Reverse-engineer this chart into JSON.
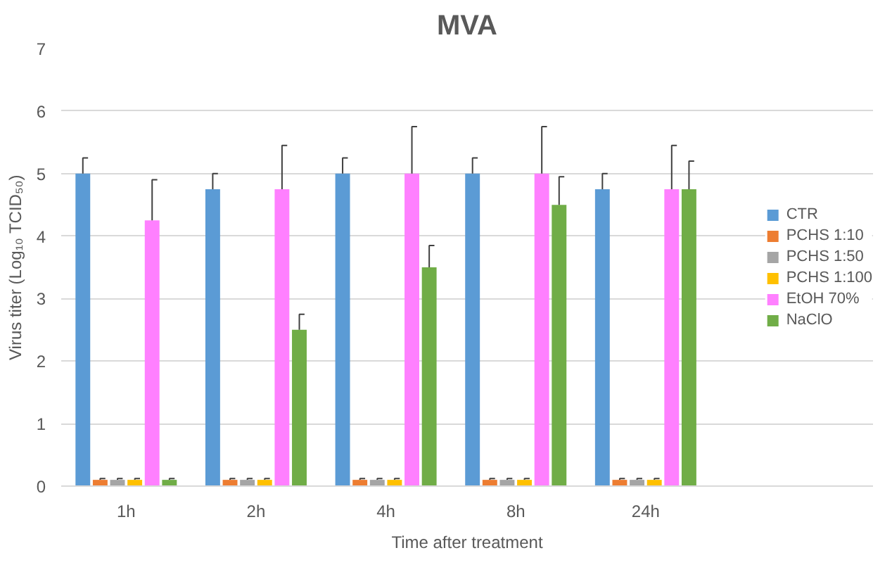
{
  "chart_data": {
    "type": "bar",
    "title": "MVA",
    "xlabel": "Time after treatment",
    "ylabel": "Virus titer (Log₁₀ TCID₅₀)",
    "categories": [
      "1h",
      "2h",
      "4h",
      "8h",
      "24h"
    ],
    "ylim": [
      0,
      7
    ],
    "yticks": [
      0,
      1,
      2,
      3,
      4,
      5,
      6,
      7
    ],
    "grid": "y",
    "legend": "right",
    "series": [
      {
        "name": "CTR",
        "color": "#5b9bd5",
        "values": [
          5,
          4.75,
          5,
          5,
          4.75
        ],
        "errors": [
          [
            5,
            5.25
          ],
          [
            4.75,
            5
          ],
          [
            5,
            5.25
          ],
          [
            5,
            5.25
          ],
          [
            4.75,
            5
          ]
        ]
      },
      {
        "name": "PCHS 1:10",
        "color": "#ed7d31",
        "values": [
          0.1,
          0.1,
          0.1,
          0.1,
          0.1
        ],
        "errors": [
          [
            0.1,
            0.12
          ],
          [
            0.1,
            0.12
          ],
          [
            0.1,
            0.12
          ],
          [
            0.1,
            0.12
          ],
          [
            0.1,
            0.12
          ]
        ]
      },
      {
        "name": "PCHS 1:50",
        "color": "#a5a5a5",
        "values": [
          0.1,
          0.1,
          0.1,
          0.1,
          0.1
        ],
        "errors": [
          [
            0.1,
            0.12
          ],
          [
            0.1,
            0.12
          ],
          [
            0.1,
            0.12
          ],
          [
            0.1,
            0.12
          ],
          [
            0.1,
            0.12
          ]
        ]
      },
      {
        "name": "PCHS 1:100",
        "color": "#ffc000",
        "values": [
          0.1,
          0.1,
          0.1,
          0.1,
          0.1
        ],
        "errors": [
          [
            0.1,
            0.12
          ],
          [
            0.1,
            0.12
          ],
          [
            0.1,
            0.12
          ],
          [
            0.1,
            0.12
          ],
          [
            0.1,
            0.12
          ]
        ]
      },
      {
        "name": "EtOH 70%",
        "color": "#ff80ff",
        "values": [
          4.25,
          4.75,
          5,
          5,
          4.75
        ],
        "errors": [
          [
            4.25,
            4.9
          ],
          [
            4.75,
            5.45
          ],
          [
            5,
            5.75
          ],
          [
            5,
            5.75
          ],
          [
            4.75,
            5.45
          ]
        ]
      },
      {
        "name": "NaClO",
        "color": "#70ad47",
        "values": [
          0.1,
          2.5,
          3.5,
          4.5,
          4.75
        ],
        "errors": [
          [
            0.1,
            0.12
          ],
          [
            2.5,
            2.75
          ],
          [
            3.5,
            3.85
          ],
          [
            4.5,
            4.95
          ],
          [
            4.75,
            5.2
          ]
        ]
      }
    ]
  }
}
